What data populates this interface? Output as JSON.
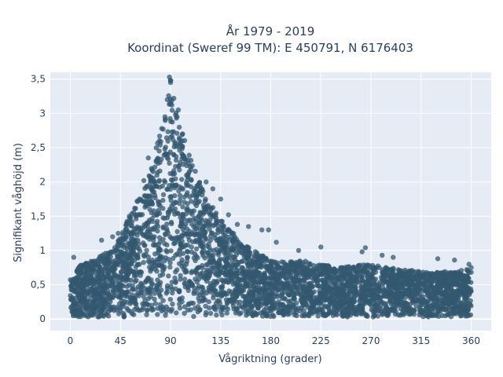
{
  "chart_data": {
    "type": "scatter",
    "title_line1": "År 1979 - 2019",
    "title_line2": "Koordinat (Sweref 99 TM): E 450791, N 6176403",
    "xlabel": "Vågriktning (grader)",
    "ylabel": "Signifikant våghöjd (m)",
    "xlim": [
      -18,
      378
    ],
    "ylim": [
      -0.17,
      3.6
    ],
    "x_ticks": [
      0,
      45,
      90,
      135,
      180,
      225,
      270,
      315,
      360
    ],
    "x_tick_labels": [
      "0",
      "45",
      "90",
      "135",
      "180",
      "225",
      "270",
      "315",
      "360"
    ],
    "y_ticks": [
      0,
      0.5,
      1,
      1.5,
      2,
      2.5,
      3,
      3.5
    ],
    "y_tick_labels": [
      "0",
      "0,5",
      "1",
      "1,5",
      "2",
      "2,5",
      "3",
      "3,5"
    ],
    "grid": true,
    "marker_color": "#33586f",
    "background_color": "#e5ecf6",
    "envelope": {
      "x": [
        0,
        10,
        20,
        30,
        40,
        45,
        50,
        60,
        70,
        75,
        80,
        85,
        88,
        90,
        92,
        95,
        100,
        105,
        110,
        115,
        120,
        130,
        135,
        140,
        150,
        160,
        170,
        180,
        195,
        210,
        225,
        240,
        255,
        270,
        285,
        300,
        315,
        330,
        345,
        360
      ],
      "y_max": [
        0.6,
        0.8,
        0.85,
        0.95,
        1.05,
        1.2,
        1.4,
        1.7,
        2.05,
        2.35,
        2.7,
        3.0,
        3.3,
        3.5,
        3.3,
        3.1,
        2.8,
        2.5,
        2.3,
        2.1,
        1.85,
        1.6,
        1.5,
        1.35,
        1.2,
        1.05,
        0.95,
        0.85,
        0.85,
        0.85,
        0.8,
        0.75,
        0.78,
        0.8,
        0.75,
        0.72,
        0.7,
        0.7,
        0.68,
        0.75
      ]
    },
    "outliers": [
      {
        "x": 89,
        "y": 3.53
      },
      {
        "x": 90,
        "y": 3.45
      },
      {
        "x": 87,
        "y": 3.2
      },
      {
        "x": 93,
        "y": 3.22
      },
      {
        "x": 97,
        "y": 3.05
      },
      {
        "x": 85,
        "y": 2.95
      },
      {
        "x": 80,
        "y": 2.6
      },
      {
        "x": 70,
        "y": 2.35
      },
      {
        "x": 66,
        "y": 2.02
      },
      {
        "x": 60,
        "y": 1.72
      },
      {
        "x": 53,
        "y": 1.5
      },
      {
        "x": 122,
        "y": 2.0
      },
      {
        "x": 128,
        "y": 1.9
      },
      {
        "x": 135,
        "y": 1.75
      },
      {
        "x": 142,
        "y": 1.52
      },
      {
        "x": 150,
        "y": 1.38
      },
      {
        "x": 160,
        "y": 1.35
      },
      {
        "x": 172,
        "y": 1.3
      },
      {
        "x": 178,
        "y": 1.3
      },
      {
        "x": 185,
        "y": 1.12
      },
      {
        "x": 205,
        "y": 1.0
      },
      {
        "x": 225,
        "y": 1.05
      },
      {
        "x": 262,
        "y": 0.98
      },
      {
        "x": 265,
        "y": 1.04
      },
      {
        "x": 280,
        "y": 0.93
      },
      {
        "x": 290,
        "y": 0.9
      },
      {
        "x": 330,
        "y": 0.88
      },
      {
        "x": 345,
        "y": 0.86
      },
      {
        "x": 358,
        "y": 0.8
      },
      {
        "x": 360,
        "y": 0.75
      },
      {
        "x": 3,
        "y": 0.9
      },
      {
        "x": 28,
        "y": 1.15
      },
      {
        "x": 38,
        "y": 1.2
      },
      {
        "x": 43,
        "y": 1.25
      }
    ]
  }
}
